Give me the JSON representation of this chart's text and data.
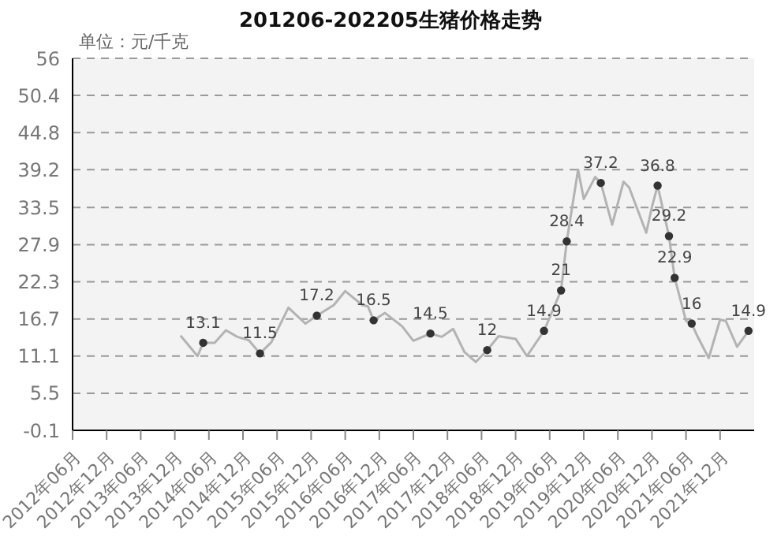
{
  "chart_data": {
    "type": "line",
    "title": "201206-202205生猪价格走势",
    "ylabel": "单位：元/千克",
    "x": [
      "2014-01",
      "2014-04",
      "2014-05",
      "2014-07",
      "2014-09",
      "2014-11",
      "2015-01",
      "2015-03",
      "2015-05",
      "2015-08",
      "2015-11",
      "2016-01",
      "2016-04",
      "2016-06",
      "2016-09",
      "2016-10",
      "2016-11",
      "2017-01",
      "2017-04",
      "2017-06",
      "2017-09",
      "2017-11",
      "2018-01",
      "2018-03",
      "2018-05",
      "2018-07",
      "2018-09",
      "2018-12",
      "2019-02",
      "2019-05",
      "2019-08",
      "2019-09",
      "2019-11",
      "2019-12",
      "2020-02",
      "2020-03",
      "2020-05",
      "2020-07",
      "2020-08",
      "2020-11",
      "2020-12",
      "2021-01",
      "2021-03",
      "2021-04",
      "2021-06",
      "2021-07",
      "2021-08",
      "2021-10",
      "2021-12",
      "2022-01",
      "2022-03",
      "2022-05"
    ],
    "series": [
      {
        "color": "#b3b3b3",
        "marker": "none",
        "values": [
          14.2,
          11.1,
          13.1,
          13.1,
          15.0,
          14.0,
          13.5,
          11.5,
          13.2,
          18.4,
          16.0,
          17.2,
          18.8,
          20.9,
          18.8,
          18.6,
          16.5,
          17.6,
          15.6,
          13.4,
          14.5,
          14.0,
          15.2,
          11.7,
          10.2,
          12,
          14.1,
          13.7,
          11.1,
          14.9,
          21,
          28.4,
          39.2,
          34.8,
          38.1,
          37.2,
          30.9,
          37.4,
          36.5,
          29.7,
          33.6,
          36.8,
          29.2,
          22.9,
          16.4,
          16,
          14.1,
          10.8,
          16.6,
          16.4,
          12.5,
          14.9
        ]
      },
      {
        "type": "scatter",
        "color": "#333333",
        "x": [
          "2014-05",
          "2015-03",
          "2016-01",
          "2016-11",
          "2017-09",
          "2018-07",
          "2019-05",
          "2019-08",
          "2019-09",
          "2020-03",
          "2021-01",
          "2021-03",
          "2021-04",
          "2021-07",
          "2022-05"
        ],
        "values": [
          13.1,
          11.5,
          17.2,
          16.5,
          14.5,
          12,
          14.9,
          21,
          28.4,
          37.2,
          36.8,
          29.2,
          22.9,
          16,
          14.9
        ],
        "data_labels": true
      }
    ],
    "xlim": [
      "2012-06",
      "2022-06"
    ],
    "xticks": [
      {
        "value": "2012-06",
        "label": "2012年06月"
      },
      {
        "value": "2012-12",
        "label": "2012年12月"
      },
      {
        "value": "2013-06",
        "label": "2013年06月"
      },
      {
        "value": "2013-12",
        "label": "2013年12月"
      },
      {
        "value": "2014-06",
        "label": "2014年06月"
      },
      {
        "value": "2014-12",
        "label": "2014年12月"
      },
      {
        "value": "2015-06",
        "label": "2015年06月"
      },
      {
        "value": "2015-12",
        "label": "2015年12月"
      },
      {
        "value": "2016-06",
        "label": "2016年06月"
      },
      {
        "value": "2016-12",
        "label": "2016年12月"
      },
      {
        "value": "2017-06",
        "label": "2017年06月"
      },
      {
        "value": "2017-12",
        "label": "2017年12月"
      },
      {
        "value": "2018-06",
        "label": "2018年06月"
      },
      {
        "value": "2018-12",
        "label": "2018年12月"
      },
      {
        "value": "2019-06",
        "label": "2019年06月"
      },
      {
        "value": "2019-12",
        "label": "2019年12月"
      },
      {
        "value": "2020-06",
        "label": "2020年06月"
      },
      {
        "value": "2020-12",
        "label": "2020年12月"
      },
      {
        "value": "2021-06",
        "label": "2021年06月"
      },
      {
        "value": "2021-12",
        "label": "2021年12月"
      }
    ],
    "ylim": [
      -0.1,
      56
    ],
    "yticks": [
      -0.1,
      5.5,
      11.1,
      16.7,
      22.3,
      27.9,
      33.5,
      39.2,
      44.8,
      50.4,
      56
    ],
    "grid": "y",
    "marker": "circle",
    "line_style": "solid"
  }
}
